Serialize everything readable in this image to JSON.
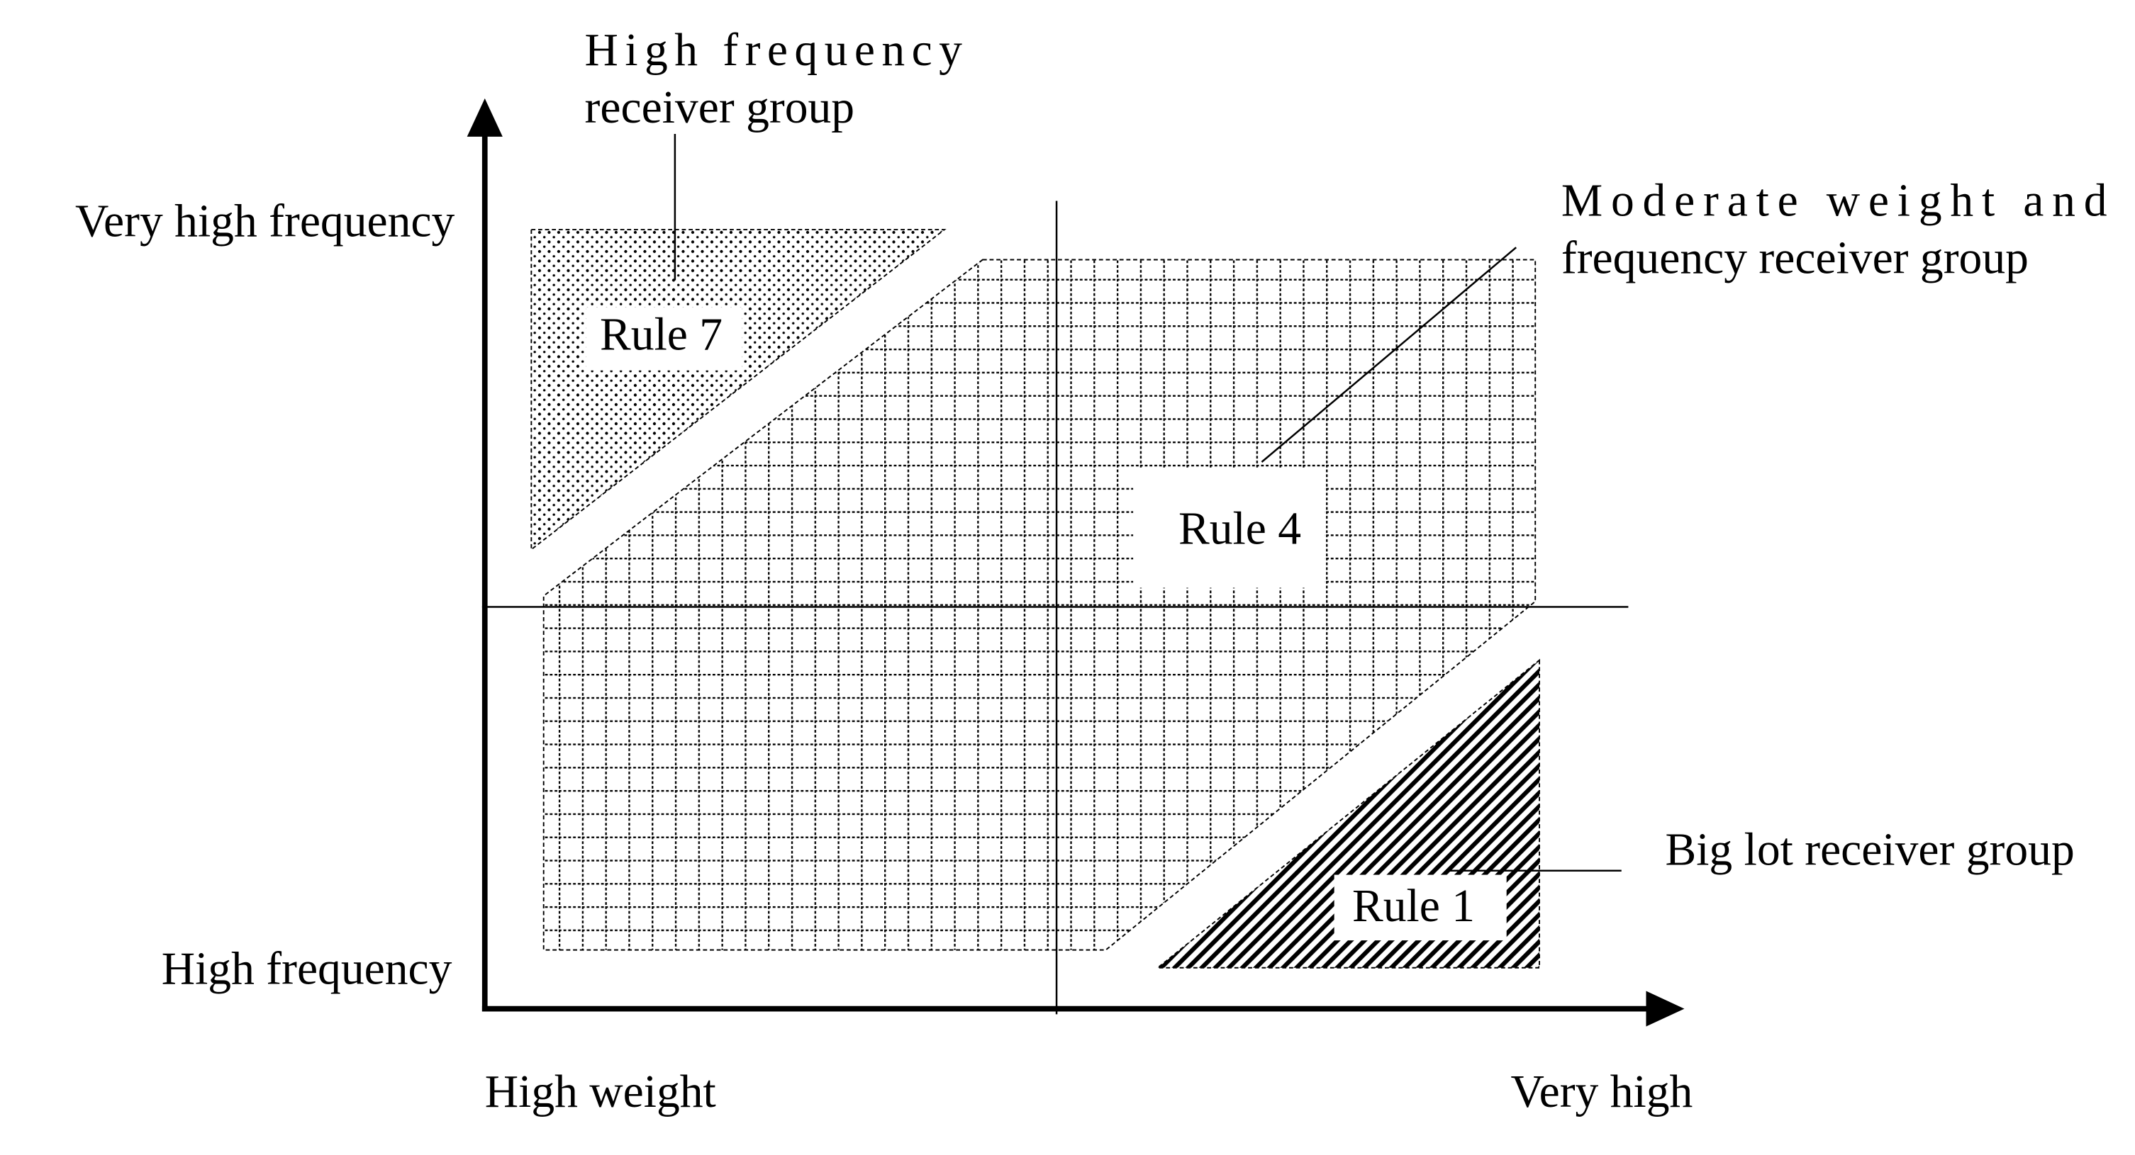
{
  "axes": {
    "y_top": "Very high frequency",
    "y_bottom": "High frequency",
    "x_left": "High weight",
    "x_right": "Very high"
  },
  "regions": [
    {
      "label": "Rule 7",
      "group_lines": [
        "High frequency",
        "receiver group"
      ]
    },
    {
      "label": "Rule 4",
      "group_lines": [
        "Moderate weight and",
        "frequency receiver group"
      ]
    },
    {
      "label": "Rule 1",
      "group_lines": [
        "Big lot receiver group"
      ]
    }
  ]
}
